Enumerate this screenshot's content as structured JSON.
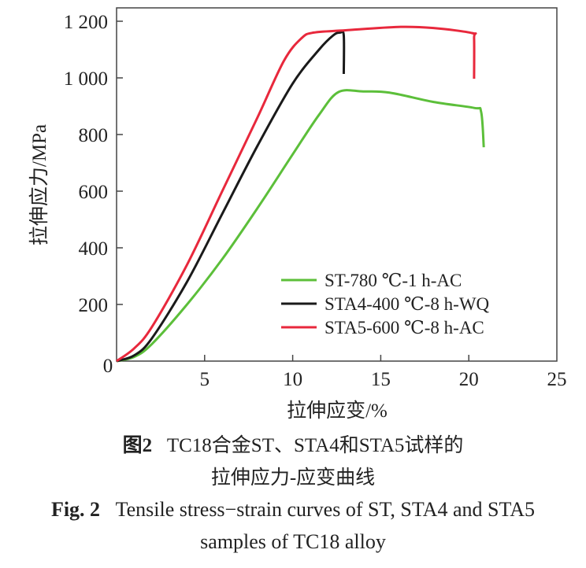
{
  "chart_data": {
    "type": "line",
    "xlabel": "拉伸应变/%",
    "ylabel": "拉伸应力/MPa",
    "xlim": [
      0,
      25
    ],
    "ylim": [
      0,
      1250
    ],
    "xticks": [
      "0",
      "5",
      "10",
      "15",
      "20",
      "25"
    ],
    "xtick_values": [
      0,
      5,
      10,
      15,
      20,
      25
    ],
    "yticks": [
      "200",
      "400",
      "600",
      "800",
      "1 000",
      "1 200"
    ],
    "ytick_values": [
      200,
      400,
      600,
      800,
      1000,
      1200
    ],
    "grid": false,
    "legend_position": "bottom-right",
    "series": [
      {
        "name": "ST-780 ℃-1 h-AC",
        "color": "#5cbf3a",
        "points": [
          [
            0,
            0
          ],
          [
            1,
            15
          ],
          [
            2,
            60
          ],
          [
            4,
            200
          ],
          [
            6,
            360
          ],
          [
            8,
            540
          ],
          [
            10,
            730
          ],
          [
            11.5,
            870
          ],
          [
            12.6,
            950
          ],
          [
            14,
            952
          ],
          [
            15.5,
            948
          ],
          [
            18,
            915
          ],
          [
            20.3,
            894
          ],
          [
            20.7,
            880
          ],
          [
            20.85,
            755
          ]
        ]
      },
      {
        "name": "STA4-400 ℃-8 h-WQ",
        "color": "#1a1a1a",
        "points": [
          [
            0,
            0
          ],
          [
            1,
            20
          ],
          [
            2,
            80
          ],
          [
            4,
            280
          ],
          [
            6,
            520
          ],
          [
            8,
            760
          ],
          [
            10,
            980
          ],
          [
            11.5,
            1100
          ],
          [
            12.3,
            1150
          ],
          [
            12.7,
            1160
          ],
          [
            12.9,
            1150
          ],
          [
            12.9,
            1014
          ]
        ]
      },
      {
        "name": "STA5-600 ℃-8 h-AC",
        "color": "#e8283c",
        "points": [
          [
            0,
            0
          ],
          [
            1,
            45
          ],
          [
            2,
            120
          ],
          [
            4,
            340
          ],
          [
            6,
            600
          ],
          [
            8,
            860
          ],
          [
            9.5,
            1060
          ],
          [
            10.5,
            1140
          ],
          [
            11.2,
            1160
          ],
          [
            13,
            1168
          ],
          [
            16,
            1180
          ],
          [
            18,
            1176
          ],
          [
            20.2,
            1158
          ],
          [
            20.3,
            1140
          ],
          [
            20.3,
            997
          ]
        ]
      }
    ]
  },
  "caption": {
    "cn_label": "图2",
    "cn_line1": "TC18合金ST、STA4和STA5试样的",
    "cn_line2": "拉伸应力-应变曲线",
    "en_label": "Fig. 2",
    "en_line1": "Tensile stress−strain curves of ST, STA4 and STA5",
    "en_line2": "samples of TC18 alloy"
  }
}
